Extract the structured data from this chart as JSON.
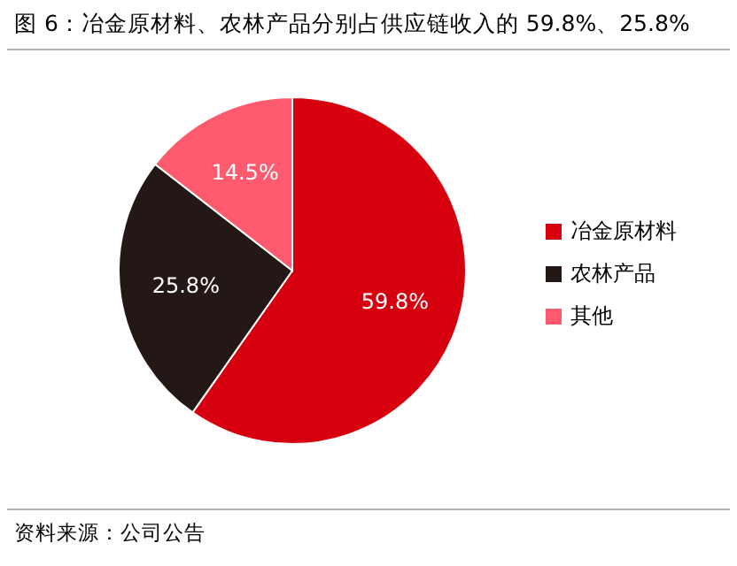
{
  "chart_data": {
    "type": "pie",
    "title": "图 6：冶金原材料、农林产品分别占供应链收入的 59.8%、25.8%",
    "categories": [
      "冶金原材料",
      "农林产品",
      "其他"
    ],
    "values": [
      59.8,
      25.8,
      14.5
    ],
    "colors": [
      "#d7000f",
      "#231816",
      "#ff5a6e"
    ],
    "value_labels": [
      "59.8%",
      "25.8%",
      "14.5%"
    ],
    "legend": "right",
    "annotations": [
      "资料来源：公司公告"
    ]
  }
}
